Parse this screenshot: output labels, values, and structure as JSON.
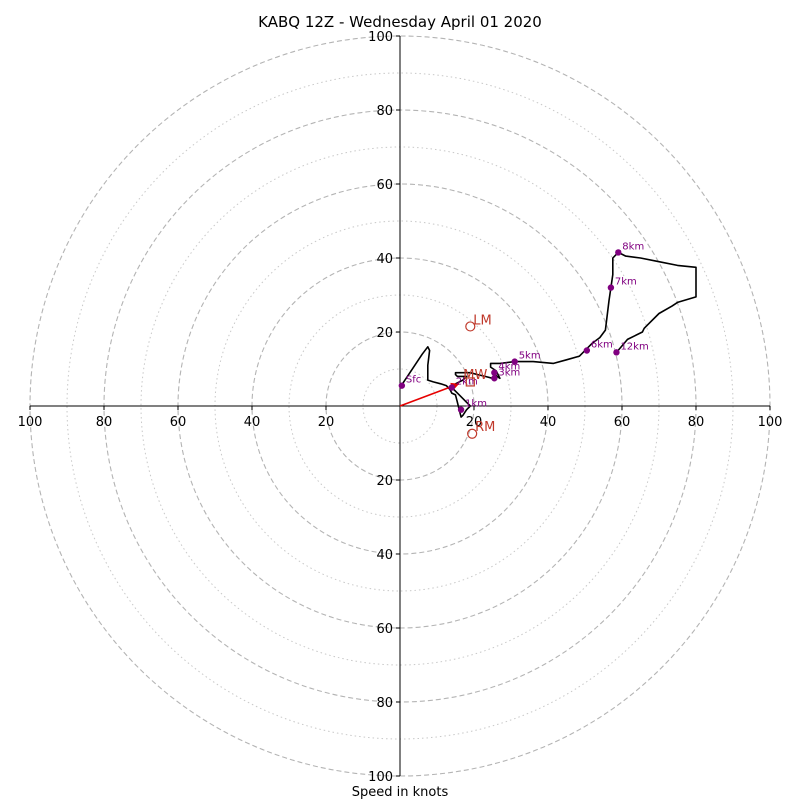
{
  "chart_data": {
    "type": "hodograph",
    "title": "KABQ 12Z - Wednesday April 01 2020",
    "xlabel": "Speed in knots",
    "range": [
      -100,
      100
    ],
    "ring_major": [
      20,
      40,
      60,
      80,
      100
    ],
    "ring_minor": [
      10,
      30,
      50,
      70,
      90
    ],
    "tick_labels": [
      "100",
      "80",
      "60",
      "40",
      "20",
      "20",
      "40",
      "60",
      "80",
      "100"
    ],
    "y_tick_labels_top": [
      "100",
      "80",
      "60",
      "40",
      "20"
    ],
    "y_tick_labels_bottom": [
      "20",
      "40",
      "60",
      "80",
      "100"
    ],
    "colors": {
      "trace": "#000000",
      "height_marker": "#800080",
      "motion": "#c0392b",
      "shear_vector": "#e60000",
      "grid": "#b4b4b4"
    },
    "trace": [
      [
        0,
        5
      ],
      [
        2,
        8
      ],
      [
        4,
        11
      ],
      [
        6,
        14
      ],
      [
        7.5,
        16
      ],
      [
        8,
        15
      ],
      [
        7.5,
        11
      ],
      [
        7.5,
        7
      ],
      [
        9,
        6.5
      ],
      [
        11,
        6
      ],
      [
        12.5,
        5.5
      ],
      [
        13.5,
        4.5
      ],
      [
        14,
        3.5
      ],
      [
        15,
        3
      ],
      [
        15.5,
        1
      ],
      [
        16,
        -1
      ],
      [
        16.5,
        -3
      ],
      [
        17,
        -2.5
      ],
      [
        18,
        -1
      ],
      [
        19,
        0
      ],
      [
        18,
        1
      ],
      [
        17,
        2
      ],
      [
        15.5,
        3.5
      ],
      [
        14,
        5
      ],
      [
        15,
        6
      ],
      [
        17,
        7
      ],
      [
        18,
        8
      ],
      [
        18,
        8
      ],
      [
        15.5,
        8
      ],
      [
        15,
        8.5
      ],
      [
        15,
        9
      ],
      [
        17,
        9
      ],
      [
        19,
        9
      ],
      [
        21,
        8.5
      ],
      [
        23,
        8
      ],
      [
        25,
        7.5
      ],
      [
        25.5,
        8.5
      ],
      [
        27,
        7.5
      ],
      [
        26,
        9.5
      ],
      [
        24.5,
        10.5
      ],
      [
        24.5,
        11.5
      ],
      [
        27,
        11.5
      ],
      [
        31,
        12
      ],
      [
        36,
        12
      ],
      [
        41.5,
        11.5
      ],
      [
        45,
        12.5
      ],
      [
        48.5,
        13.5
      ],
      [
        50,
        15
      ],
      [
        52,
        17
      ],
      [
        54,
        18.5
      ],
      [
        55.5,
        20.5
      ],
      [
        56,
        24.5
      ],
      [
        56.5,
        28.5
      ],
      [
        57,
        32
      ],
      [
        57.5,
        35.5
      ],
      [
        57.5,
        38.5
      ],
      [
        57.5,
        40
      ],
      [
        59,
        41.5
      ],
      [
        61,
        40.5
      ],
      [
        65,
        40
      ],
      [
        70,
        39
      ],
      [
        75,
        38
      ],
      [
        80,
        37.5
      ],
      [
        80,
        33
      ],
      [
        80,
        29.5
      ],
      [
        75,
        28
      ],
      [
        73.5,
        27
      ],
      [
        70,
        25
      ],
      [
        67,
        22
      ],
      [
        66,
        21
      ],
      [
        65.5,
        20
      ],
      [
        63.5,
        19
      ],
      [
        61.5,
        18
      ],
      [
        58.5,
        14.5
      ]
    ],
    "height_markers": [
      {
        "label": "Sfc",
        "u": 0.5,
        "v": 5.5
      },
      {
        "label": "1km",
        "u": 16.5,
        "v": -1
      },
      {
        "label": "2km",
        "u": 14,
        "v": 5
      },
      {
        "label": "3km",
        "u": 25.5,
        "v": 7.5
      },
      {
        "label": "4km",
        "u": 25.5,
        "v": 9
      },
      {
        "label": "5km",
        "u": 31,
        "v": 12
      },
      {
        "label": "6km",
        "u": 50.5,
        "v": 15
      },
      {
        "label": "7km",
        "u": 57,
        "v": 32
      },
      {
        "label": "8km",
        "u": 59,
        "v": 41.5
      },
      {
        "label": "12km",
        "u": 58.5,
        "v": 14.5
      }
    ],
    "storm_motion": {
      "LM": {
        "label": "LM",
        "u": 19,
        "v": 21.5
      },
      "RM": {
        "label": "RM",
        "u": 19.5,
        "v": -7.5
      },
      "MW": {
        "label": "MW",
        "u": 19,
        "v": 6.5
      }
    },
    "shear_vector": {
      "from": [
        0,
        0
      ],
      "to": [
        16,
        6
      ]
    }
  }
}
